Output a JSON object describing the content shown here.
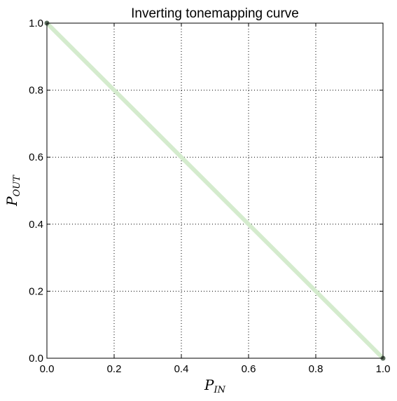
{
  "chart_data": {
    "type": "line",
    "title": "Inverting tonemapping curve",
    "xlabel": {
      "main": "P",
      "sub": "IN"
    },
    "ylabel": {
      "main": "P",
      "sub": "OUT"
    },
    "xlim": [
      0.0,
      1.0
    ],
    "ylim": [
      0.0,
      1.0
    ],
    "xticks": [
      0.0,
      0.2,
      0.4,
      0.6,
      0.8,
      1.0
    ],
    "yticks": [
      0.0,
      0.2,
      0.4,
      0.6,
      0.8,
      1.0
    ],
    "xtick_labels": [
      "0.0",
      "0.2",
      "0.4",
      "0.6",
      "0.8",
      "1.0"
    ],
    "ytick_labels": [
      "0.0",
      "0.2",
      "0.4",
      "0.6",
      "0.8",
      "1.0"
    ],
    "grid": true,
    "grid_style": "dotted",
    "series": [
      {
        "x": [
          0.0,
          1.0
        ],
        "y": [
          1.0,
          0.0
        ],
        "color": "#d4ebcd"
      }
    ],
    "endpoint_markers": {
      "x": [
        0.0,
        1.0
      ],
      "y": [
        1.0,
        0.0
      ],
      "color": "#5a6b5c"
    }
  }
}
